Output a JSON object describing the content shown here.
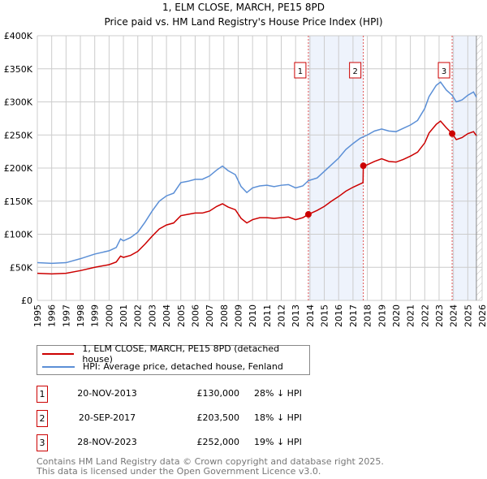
{
  "chart_data": {
    "type": "line",
    "title": "1, ELM CLOSE, MARCH, PE15 8PD",
    "subtitle": "Price paid vs. HM Land Registry's House Price Index (HPI)",
    "xlim": [
      1995,
      2026
    ],
    "ylim": [
      0,
      400000
    ],
    "y_ticks": [
      {
        "v": 0,
        "label": "£0"
      },
      {
        "v": 50000,
        "label": "£50K"
      },
      {
        "v": 100000,
        "label": "£100K"
      },
      {
        "v": 150000,
        "label": "£150K"
      },
      {
        "v": 200000,
        "label": "£200K"
      },
      {
        "v": 250000,
        "label": "£250K"
      },
      {
        "v": 300000,
        "label": "£300K"
      },
      {
        "v": 350000,
        "label": "£350K"
      },
      {
        "v": 400000,
        "label": "£400K"
      }
    ],
    "x_ticks": [
      "1995",
      "1996",
      "1997",
      "1998",
      "1999",
      "2000",
      "2001",
      "2002",
      "2003",
      "2004",
      "2005",
      "2006",
      "2007",
      "2008",
      "2009",
      "2010",
      "2011",
      "2012",
      "2013",
      "2014",
      "2015",
      "2016",
      "2017",
      "2018",
      "2019",
      "2020",
      "2021",
      "2022",
      "2023",
      "2024",
      "2025",
      "2026"
    ],
    "grid": true,
    "shaded_ranges": [
      [
        2013.89,
        2017.72
      ],
      [
        2023.91,
        2025.6
      ]
    ],
    "hatched_from": 2025.6,
    "series": [
      {
        "name": "1, ELM CLOSE, MARCH, PE15 8PD (detached house)",
        "color": "#cc0000",
        "points": [
          [
            1995,
            41000
          ],
          [
            1996,
            40000
          ],
          [
            1997,
            41000
          ],
          [
            1998,
            45000
          ],
          [
            1999,
            50000
          ],
          [
            2000,
            54000
          ],
          [
            2000.5,
            58000
          ],
          [
            2000.8,
            67000
          ],
          [
            2001,
            65000
          ],
          [
            2001.5,
            68000
          ],
          [
            2002,
            74000
          ],
          [
            2002.5,
            85000
          ],
          [
            2003,
            97000
          ],
          [
            2003.5,
            108000
          ],
          [
            2004,
            114000
          ],
          [
            2004.5,
            117000
          ],
          [
            2005,
            128000
          ],
          [
            2005.5,
            130000
          ],
          [
            2006,
            132000
          ],
          [
            2006.5,
            132000
          ],
          [
            2007,
            135000
          ],
          [
            2007.5,
            142000
          ],
          [
            2007.9,
            146000
          ],
          [
            2008.3,
            141000
          ],
          [
            2008.8,
            137000
          ],
          [
            2009.2,
            124000
          ],
          [
            2009.6,
            117000
          ],
          [
            2010,
            122000
          ],
          [
            2010.5,
            125000
          ],
          [
            2011,
            125000
          ],
          [
            2011.5,
            124000
          ],
          [
            2012,
            125000
          ],
          [
            2012.5,
            126000
          ],
          [
            2013,
            122000
          ],
          [
            2013.5,
            125000
          ],
          [
            2013.89,
            130000
          ],
          [
            2014.5,
            136000
          ],
          [
            2015,
            142000
          ],
          [
            2015.5,
            150000
          ],
          [
            2016,
            157000
          ],
          [
            2016.5,
            165000
          ],
          [
            2017,
            171000
          ],
          [
            2017.5,
            176000
          ],
          [
            2017.7,
            178000
          ],
          [
            2017.72,
            203500
          ],
          [
            2018,
            205000
          ],
          [
            2018.5,
            210000
          ],
          [
            2019,
            214000
          ],
          [
            2019.5,
            210000
          ],
          [
            2020,
            209000
          ],
          [
            2020.5,
            213000
          ],
          [
            2021,
            218000
          ],
          [
            2021.5,
            224000
          ],
          [
            2022,
            238000
          ],
          [
            2022.3,
            253000
          ],
          [
            2022.8,
            266000
          ],
          [
            2023.1,
            271000
          ],
          [
            2023.5,
            261000
          ],
          [
            2023.91,
            252000
          ],
          [
            2024.2,
            243000
          ],
          [
            2024.6,
            246000
          ],
          [
            2025,
            252000
          ],
          [
            2025.4,
            255000
          ],
          [
            2025.6,
            249000
          ]
        ]
      },
      {
        "name": "HPI: Average price, detached house, Fenland",
        "color": "#5b8fd6",
        "points": [
          [
            1995,
            57000
          ],
          [
            1996,
            56000
          ],
          [
            1997,
            57000
          ],
          [
            1998,
            63000
          ],
          [
            1999,
            70000
          ],
          [
            2000,
            75000
          ],
          [
            2000.5,
            80000
          ],
          [
            2000.8,
            93000
          ],
          [
            2001,
            90000
          ],
          [
            2001.5,
            95000
          ],
          [
            2002,
            103000
          ],
          [
            2002.5,
            118000
          ],
          [
            2003,
            135000
          ],
          [
            2003.5,
            150000
          ],
          [
            2004,
            158000
          ],
          [
            2004.5,
            162000
          ],
          [
            2005,
            178000
          ],
          [
            2005.5,
            180000
          ],
          [
            2006,
            183000
          ],
          [
            2006.5,
            183000
          ],
          [
            2007,
            188000
          ],
          [
            2007.5,
            197000
          ],
          [
            2007.9,
            203000
          ],
          [
            2008.3,
            196000
          ],
          [
            2008.8,
            190000
          ],
          [
            2009.2,
            172000
          ],
          [
            2009.6,
            163000
          ],
          [
            2010,
            170000
          ],
          [
            2010.5,
            173000
          ],
          [
            2011,
            174000
          ],
          [
            2011.5,
            172000
          ],
          [
            2012,
            174000
          ],
          [
            2012.5,
            175000
          ],
          [
            2013,
            170000
          ],
          [
            2013.5,
            173000
          ],
          [
            2013.89,
            181000
          ],
          [
            2014.5,
            185000
          ],
          [
            2015,
            195000
          ],
          [
            2015.5,
            205000
          ],
          [
            2016,
            215000
          ],
          [
            2016.5,
            228000
          ],
          [
            2017,
            237000
          ],
          [
            2017.5,
            245000
          ],
          [
            2018,
            250000
          ],
          [
            2018.5,
            256000
          ],
          [
            2019,
            259000
          ],
          [
            2019.5,
            256000
          ],
          [
            2020,
            255000
          ],
          [
            2020.5,
            260000
          ],
          [
            2021,
            265000
          ],
          [
            2021.5,
            272000
          ],
          [
            2022,
            290000
          ],
          [
            2022.3,
            308000
          ],
          [
            2022.8,
            325000
          ],
          [
            2023.1,
            330000
          ],
          [
            2023.5,
            318000
          ],
          [
            2023.91,
            310000
          ],
          [
            2024.2,
            300000
          ],
          [
            2024.6,
            303000
          ],
          [
            2025,
            310000
          ],
          [
            2025.4,
            315000
          ],
          [
            2025.6,
            307000
          ]
        ]
      }
    ],
    "sales": [
      {
        "label": "1",
        "x": 2013.89,
        "y": 130000,
        "date": "20-NOV-2013",
        "price": "£130,000",
        "hpi": "28% ↓ HPI"
      },
      {
        "label": "2",
        "x": 2017.72,
        "y": 203500,
        "date": "20-SEP-2017",
        "price": "£203,500",
        "hpi": "18% ↓ HPI"
      },
      {
        "label": "3",
        "x": 2023.91,
        "y": 252000,
        "date": "28-NOV-2023",
        "price": "£252,000",
        "hpi": "19% ↓ HPI"
      }
    ],
    "legend_placement": "bottom"
  },
  "footer": {
    "line1": "Contains HM Land Registry data © Crown copyright and database right 2025.",
    "line2": "This data is licensed under the Open Government Licence v3.0."
  }
}
